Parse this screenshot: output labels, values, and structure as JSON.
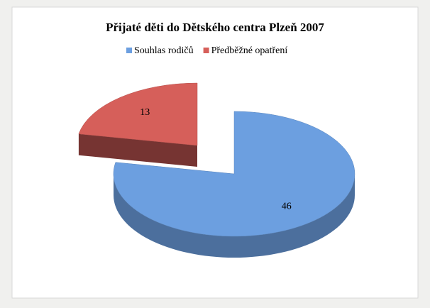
{
  "chart_data": {
    "type": "pie",
    "title": "Přijaté děti do Dětského centra Plzeň 2007",
    "labels": [
      "Souhlas rodičů",
      "Předběžné opatření"
    ],
    "values": [
      46,
      13
    ],
    "colors": [
      "#6c9fe0",
      "#d65f5a"
    ],
    "legend": "top"
  }
}
